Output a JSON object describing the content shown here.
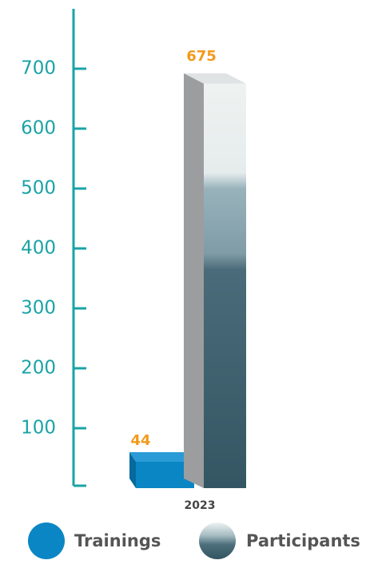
{
  "chart_data": {
    "type": "bar3d",
    "categories": [
      "2023"
    ],
    "series": [
      {
        "name": "Trainings",
        "color": "#0a86c4",
        "values": [
          44
        ]
      },
      {
        "name": "Participants",
        "color": "#3d6474",
        "values": [
          675
        ]
      }
    ],
    "ylim": [
      0,
      800
    ],
    "yticks": [
      100,
      200,
      300,
      400,
      500,
      600,
      700
    ],
    "axis_color": "#1aa3a6",
    "label_color": "#f29a1c"
  }
}
